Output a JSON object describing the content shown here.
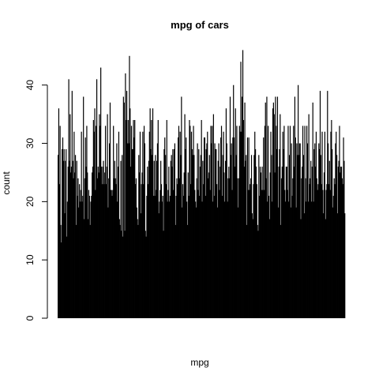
{
  "chart_data": {
    "type": "bar",
    "title": "mpg of cars",
    "xlabel": "mpg",
    "ylabel": "count",
    "ylim": [
      0,
      46.6
    ],
    "yticks": [
      0,
      10,
      20,
      30,
      40
    ],
    "x_axis_drawn": false,
    "bar_color": "#000000",
    "values": [
      28,
      36,
      23,
      33,
      16,
      13,
      29,
      31,
      27,
      29,
      18,
      27,
      29,
      14,
      20,
      26,
      41,
      27,
      35,
      25,
      26,
      39,
      27,
      24,
      32,
      25,
      28,
      16,
      27,
      21,
      24,
      19,
      23,
      20,
      22,
      32,
      20,
      21,
      38,
      17,
      24,
      31,
      26,
      33,
      25,
      17,
      22,
      21,
      16,
      20,
      21,
      25,
      26,
      34,
      32,
      36,
      22,
      33,
      41,
      24,
      26,
      25,
      35,
      33,
      43,
      26,
      23,
      26,
      27,
      23,
      25,
      33,
      23,
      26,
      35,
      19,
      24,
      30,
      37,
      22,
      22,
      21,
      22,
      33,
      24,
      27,
      24,
      23,
      30,
      20,
      26,
      32,
      17,
      16,
      27,
      15,
      28,
      14,
      38,
      37,
      15,
      42,
      34,
      39,
      30,
      34,
      30,
      45,
      36,
      26,
      33,
      29,
      29,
      34,
      31,
      34,
      23,
      24,
      19,
      17,
      16,
      28,
      25,
      32,
      18,
      23,
      25,
      32,
      23,
      33,
      30,
      15,
      14,
      21,
      26,
      23,
      27,
      32,
      36,
      29,
      34,
      28,
      36,
      21,
      27,
      21,
      28,
      22,
      27,
      30,
      34,
      18,
      20,
      22,
      27,
      23,
      20,
      21,
      15,
      29,
      31,
      28,
      23,
      34,
      20,
      22,
      26,
      20,
      21,
      27,
      28,
      26,
      29,
      22,
      29,
      30,
      16,
      21,
      24,
      23,
      31,
      33,
      24,
      32,
      28,
      38,
      19,
      23,
      21,
      25,
      35,
      29,
      31,
      20,
      16,
      25,
      21,
      34,
      33,
      23,
      32,
      29,
      28,
      33,
      28,
      22,
      20,
      19,
      24,
      30,
      22,
      29,
      21,
      26,
      28,
      34,
      20,
      27,
      23,
      31,
      31,
      21,
      29,
      30,
      32,
      24,
      25,
      28,
      22,
      33,
      30,
      33,
      20,
      35,
      21,
      30,
      29,
      29,
      23,
      19,
      27,
      30,
      22,
      26,
      31,
      33,
      21,
      28,
      32,
      25,
      20,
      27,
      36,
      30,
      20,
      24,
      26,
      24,
      38,
      28,
      30,
      22,
      31,
      40,
      31,
      26,
      36,
      28,
      33,
      24,
      19,
      24,
      33,
      32,
      44,
      32,
      38,
      46,
      34,
      26,
      37,
      27,
      28,
      16,
      31,
      22,
      31,
      22,
      23,
      24,
      28,
      18,
      17,
      23,
      28,
      32,
      29,
      26,
      23,
      16,
      15,
      28,
      21,
      26,
      25,
      22,
      26,
      22,
      31,
      22,
      33,
      37,
      24,
      38,
      20,
      33,
      21,
      17,
      25,
      32,
      28,
      20,
      36,
      37,
      35,
      25,
      38,
      33,
      29,
      38,
      19,
      26,
      29,
      35,
      16,
      24,
      26,
      32,
      29,
      33,
      22,
      20,
      26,
      26,
      22,
      33,
      20,
      28,
      33,
      19,
      30,
      21,
      24,
      33,
      26,
      38,
      31,
      19,
      30,
      28,
      40,
      28,
      30,
      30,
      17,
      24,
      26,
      33,
      28,
      18,
      33,
      24,
      20,
      33,
      30,
      20,
      35,
      23,
      24,
      27,
      20,
      26,
      37,
      20,
      29,
      30,
      26,
      32,
      24,
      22,
      23,
      30,
      29,
      39,
      28,
      23,
      32,
      22,
      18,
      25,
      32,
      17,
      22,
      23,
      39,
      30,
      23,
      27,
      22,
      32,
      34,
      29,
      19,
      21,
      24,
      23,
      30,
      32,
      28,
      18,
      26,
      27,
      33,
      25,
      26,
      26,
      24,
      23,
      31,
      27,
      18
    ]
  }
}
